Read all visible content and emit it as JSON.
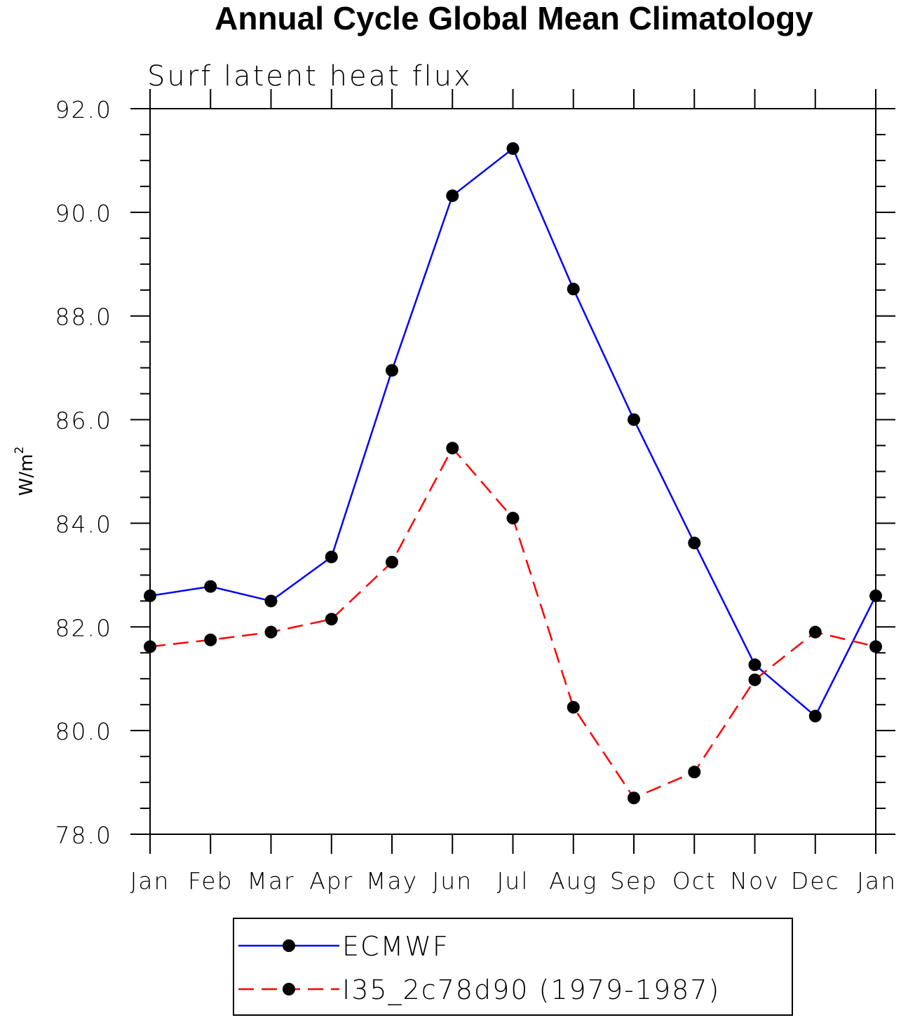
{
  "chart_data": {
    "type": "line",
    "title": "Annual Cycle Global Mean Climatology",
    "subtitle": "Surf latent heat flux",
    "xlabel": "",
    "ylabel": "W/m",
    "ylabel_sup": "2",
    "categories": [
      "Jan",
      "Feb",
      "Mar",
      "Apr",
      "May",
      "Jun",
      "Jul",
      "Aug",
      "Sep",
      "Oct",
      "Nov",
      "Dec",
      "Jan"
    ],
    "ylim": [
      78.0,
      92.0
    ],
    "y_major_ticks": [
      "78.0",
      "80.0",
      "82.0",
      "84.0",
      "86.0",
      "88.0",
      "90.0",
      "92.0"
    ],
    "y_minor_step": 0.5,
    "grid": false,
    "legend_position": "bottom",
    "series": [
      {
        "name": "ECMWF",
        "color": "#0000ff",
        "dash": "solid",
        "marker": "filled-circle",
        "values": [
          82.6,
          82.78,
          82.5,
          83.35,
          86.95,
          90.32,
          91.23,
          88.52,
          86.0,
          83.62,
          81.27,
          80.28,
          82.6
        ]
      },
      {
        "name": "I35_2c78d90 (1979-1987)",
        "color": "#ff0000",
        "dash": "dashed",
        "marker": "filled-circle",
        "values": [
          81.62,
          81.75,
          81.9,
          82.15,
          83.25,
          85.45,
          84.1,
          80.45,
          78.7,
          79.2,
          80.98,
          81.9,
          81.62
        ]
      }
    ]
  }
}
